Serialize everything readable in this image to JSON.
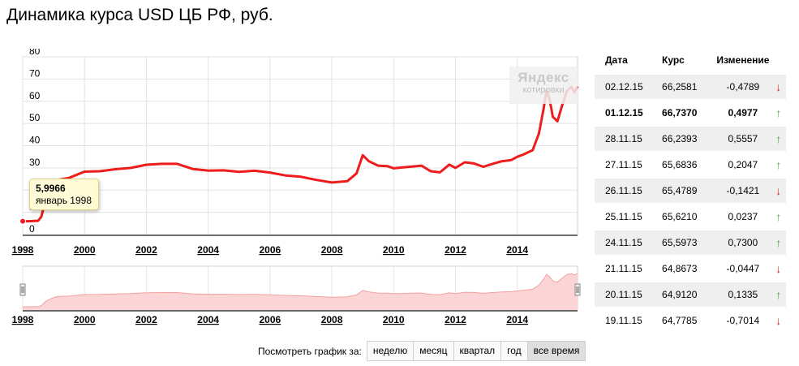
{
  "title": "Динамика курса USD ЦБ РФ, руб.",
  "colors": {
    "line": "#ee1c1c",
    "area": "#fbd5d5",
    "up": "#43b33f",
    "down": "#d9262a"
  },
  "watermark": {
    "brand": "Яндекс",
    "sub": "котировки"
  },
  "tooltip": {
    "value": "5,9966",
    "date": "январь 1998"
  },
  "chart_data": {
    "type": "line",
    "title": "Динамика курса USD ЦБ РФ, руб.",
    "xlabel": "",
    "ylabel": "",
    "ylim": [
      0,
      80
    ],
    "yticks": [
      0,
      10,
      20,
      30,
      40,
      50,
      60,
      70,
      80
    ],
    "xlim": [
      1998.0,
      2015.95
    ],
    "xticks": [
      "1998",
      "2000",
      "2002",
      "2004",
      "2006",
      "2008",
      "2010",
      "2012",
      "2014"
    ],
    "grid": true,
    "series": [
      {
        "x": [
          1998.0,
          1998.2,
          1998.5,
          1998.6,
          1998.75,
          1998.9,
          1999.1,
          1999.5,
          2000.0,
          2000.5,
          2001.0,
          2001.5,
          2002.0,
          2002.5,
          2003.0,
          2003.5,
          2004.0,
          2004.5,
          2005.0,
          2005.5,
          2006.0,
          2006.5,
          2007.0,
          2007.5,
          2008.0,
          2008.5,
          2008.8,
          2009.0,
          2009.2,
          2009.5,
          2009.8,
          2010.0,
          2010.3,
          2010.6,
          2010.9,
          2011.2,
          2011.5,
          2011.8,
          2012.0,
          2012.3,
          2012.6,
          2012.9,
          2013.2,
          2013.5,
          2013.8,
          2014.0,
          2014.2,
          2014.5,
          2014.7,
          2014.85,
          2014.95,
          2015.05,
          2015.15,
          2015.3,
          2015.45,
          2015.6,
          2015.75,
          2015.85,
          2015.95
        ],
        "values": [
          6.0,
          6.0,
          6.2,
          8.0,
          16.0,
          20.5,
          24.5,
          25.5,
          28.3,
          28.5,
          29.4,
          30.0,
          31.4,
          31.8,
          31.8,
          29.5,
          28.8,
          28.9,
          28.2,
          28.7,
          27.9,
          26.6,
          26.0,
          24.6,
          23.4,
          24.0,
          27.5,
          35.7,
          33.0,
          31.0,
          30.8,
          29.8,
          30.2,
          30.6,
          31.0,
          28.5,
          28.0,
          31.5,
          30.0,
          32.5,
          32.0,
          30.5,
          31.8,
          33.0,
          33.5,
          35.0,
          36.0,
          38.0,
          45.5,
          56.5,
          65.0,
          60.5,
          53.0,
          51.0,
          58.0,
          64.5,
          66.5,
          64.0,
          66.7
        ]
      }
    ]
  },
  "table": {
    "headers": {
      "date": "Дата",
      "rate": "Курс",
      "change": "Изменение"
    },
    "rows": [
      {
        "date": "02.12.15",
        "rate": "66,2581",
        "change": "-0,4789",
        "arrow": "↓",
        "dir": "down"
      },
      {
        "date": "01.12.15",
        "rate": "66,7370",
        "change": "0,4977",
        "arrow": "↑",
        "dir": "up"
      },
      {
        "date": "28.11.15",
        "rate": "66,2393",
        "change": "0,5557",
        "arrow": "↑",
        "dir": "up"
      },
      {
        "date": "27.11.15",
        "rate": "65,6836",
        "change": "0,2047",
        "arrow": "↑",
        "dir": "up"
      },
      {
        "date": "26.11.15",
        "rate": "65,4789",
        "change": "-0,1421",
        "arrow": "↓",
        "dir": "down"
      },
      {
        "date": "25.11.15",
        "rate": "65,6210",
        "change": "0,0237",
        "arrow": "↑",
        "dir": "up"
      },
      {
        "date": "24.11.15",
        "rate": "65,5973",
        "change": "0,7300",
        "arrow": "↑",
        "dir": "up"
      },
      {
        "date": "21.11.15",
        "rate": "64,8673",
        "change": "-0,0447",
        "arrow": "↓",
        "dir": "down"
      },
      {
        "date": "20.11.15",
        "rate": "64,9120",
        "change": "0,1335",
        "arrow": "↑",
        "dir": "up"
      },
      {
        "date": "19.11.15",
        "rate": "64,7785",
        "change": "-0,7014",
        "arrow": "↓",
        "dir": "down"
      }
    ]
  },
  "periods": {
    "label": "Посмотреть график за:",
    "options": [
      "неделю",
      "месяц",
      "квартал",
      "год",
      "все время"
    ],
    "selected": "все время"
  }
}
